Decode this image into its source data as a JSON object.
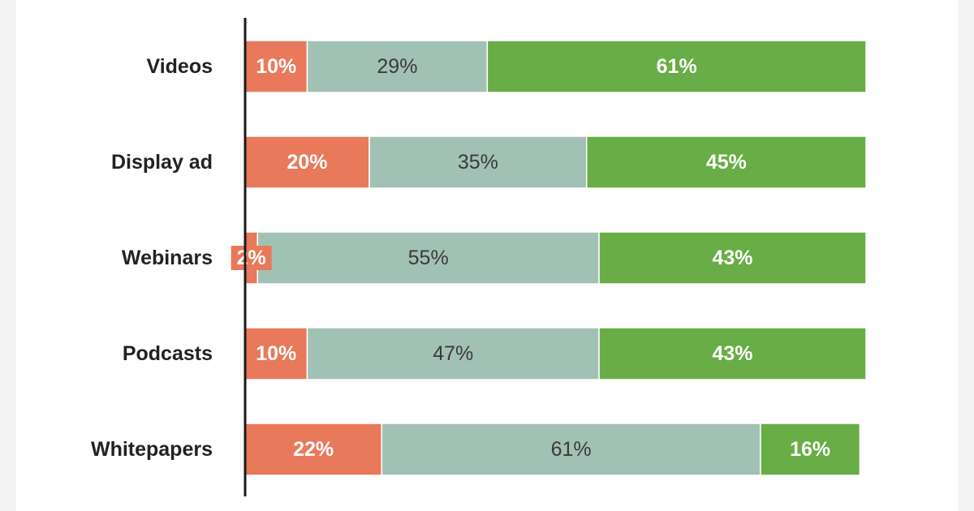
{
  "colors": {
    "background": "#ffffff",
    "axis": "#1a1a1a",
    "segment_text_light": "#ffffff",
    "segment_text_dark": "#3a3a3a"
  },
  "chart_data": {
    "type": "bar",
    "orientation": "horizontal",
    "stacked": true,
    "percent": true,
    "categories": [
      "Videos",
      "Display ad",
      "Webinars",
      "Podcasts",
      "Whitepapers"
    ],
    "series": [
      {
        "color": "#e8795a",
        "values": [
          10,
          20,
          2,
          10,
          22
        ],
        "labels": [
          "10%",
          "20%",
          "2%",
          "10%",
          "22%"
        ]
      },
      {
        "color": "#a2c1b5",
        "values": [
          29,
          35,
          55,
          47,
          61
        ],
        "labels": [
          "29%",
          "35%",
          "55%",
          "47%",
          "61%"
        ]
      },
      {
        "color": "#68ad45",
        "values": [
          61,
          45,
          43,
          43,
          16
        ],
        "labels": [
          "61%",
          "45%",
          "43%",
          "43%",
          "16%"
        ]
      }
    ],
    "xlim": [
      0,
      100
    ],
    "grid": false,
    "legend": "none",
    "title": "",
    "xlabel": "",
    "ylabel": ""
  }
}
